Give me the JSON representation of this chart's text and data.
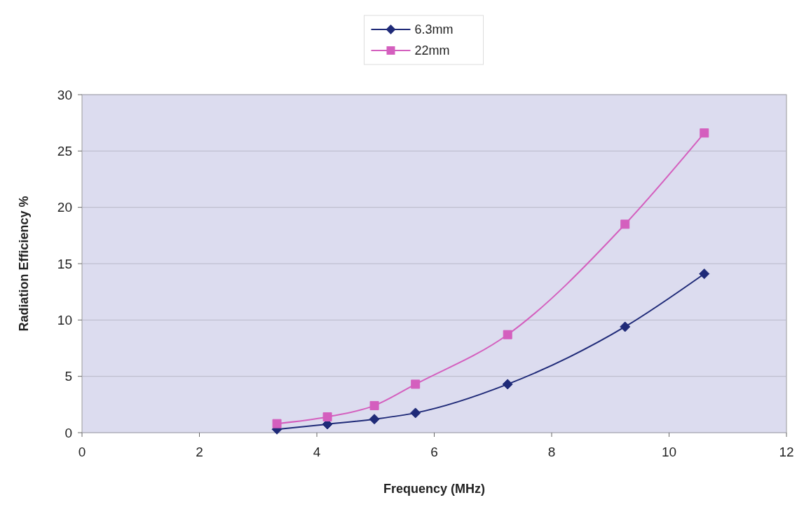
{
  "chart_data": {
    "type": "line",
    "xlabel": "Frequency (MHz)",
    "ylabel": "Radiation Efficiency %",
    "xlim": [
      0,
      12
    ],
    "xticks": [
      0,
      2,
      4,
      6,
      8,
      10,
      12
    ],
    "ylim": [
      0,
      30
    ],
    "yticks": [
      0,
      5,
      10,
      15,
      20,
      25,
      30
    ],
    "grid": "y",
    "legend": "top",
    "line_style": "solid",
    "series": [
      {
        "name": "6.3mm",
        "color": "#1f2a78",
        "marker": "diamond",
        "x": [
          3.32,
          4.18,
          4.98,
          5.68,
          7.25,
          9.25,
          10.6
        ],
        "values": [
          0.3,
          0.75,
          1.2,
          1.75,
          4.3,
          9.4,
          14.1
        ]
      },
      {
        "name": "22mm",
        "color": "#d45fbe",
        "marker": "square",
        "x": [
          3.32,
          4.18,
          4.98,
          5.68,
          7.25,
          9.25,
          10.6
        ],
        "values": [
          0.8,
          1.4,
          2.4,
          4.3,
          8.7,
          18.5,
          26.6
        ]
      }
    ]
  }
}
